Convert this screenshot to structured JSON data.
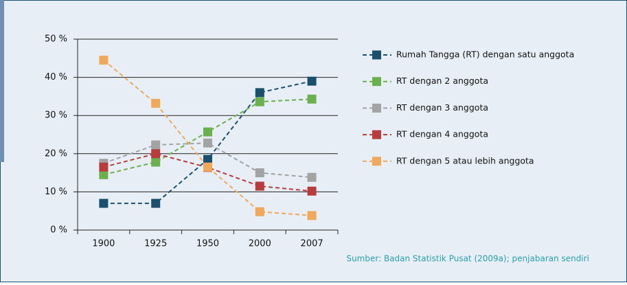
{
  "chart_data": {
    "type": "line",
    "categories": [
      "1900",
      "1925",
      "1950",
      "2000",
      "2007"
    ],
    "series": [
      {
        "name": "Rumah Tangga (RT) dengan satu anggota",
        "color": "#1a4f6e",
        "values": [
          7,
          7,
          18.5,
          36,
          39
        ]
      },
      {
        "name": "RT dengan 2 anggota",
        "color": "#6ab04c",
        "values": [
          14.5,
          17.8,
          25.7,
          33.6,
          34.3
        ]
      },
      {
        "name": "RT dengan 3 anggota",
        "color": "#a3a3a3",
        "values": [
          17.5,
          22.3,
          22.8,
          15,
          13.8
        ]
      },
      {
        "name": "RT dengan 4 anggota",
        "color": "#b83c3c",
        "values": [
          16.5,
          20,
          16.4,
          11.5,
          10.2
        ]
      },
      {
        "name": "RT dengan 5 atau lebih anggota",
        "color": "#f0a95a",
        "values": [
          44.5,
          33.2,
          16.5,
          4.8,
          3.8
        ]
      }
    ],
    "ylim": [
      0,
      50
    ],
    "yticks": [
      {
        "value": 0,
        "label": "0 %"
      },
      {
        "value": 10,
        "label": "10 %"
      },
      {
        "value": 20,
        "label": "20 %"
      },
      {
        "value": 30,
        "label": "30 %"
      },
      {
        "value": 40,
        "label": "40 %"
      },
      {
        "value": 50,
        "label": "50 %"
      }
    ],
    "grid": true,
    "source": "Sumber: Badan Statistik Pusat (2009a); penjabaran sendiri"
  }
}
